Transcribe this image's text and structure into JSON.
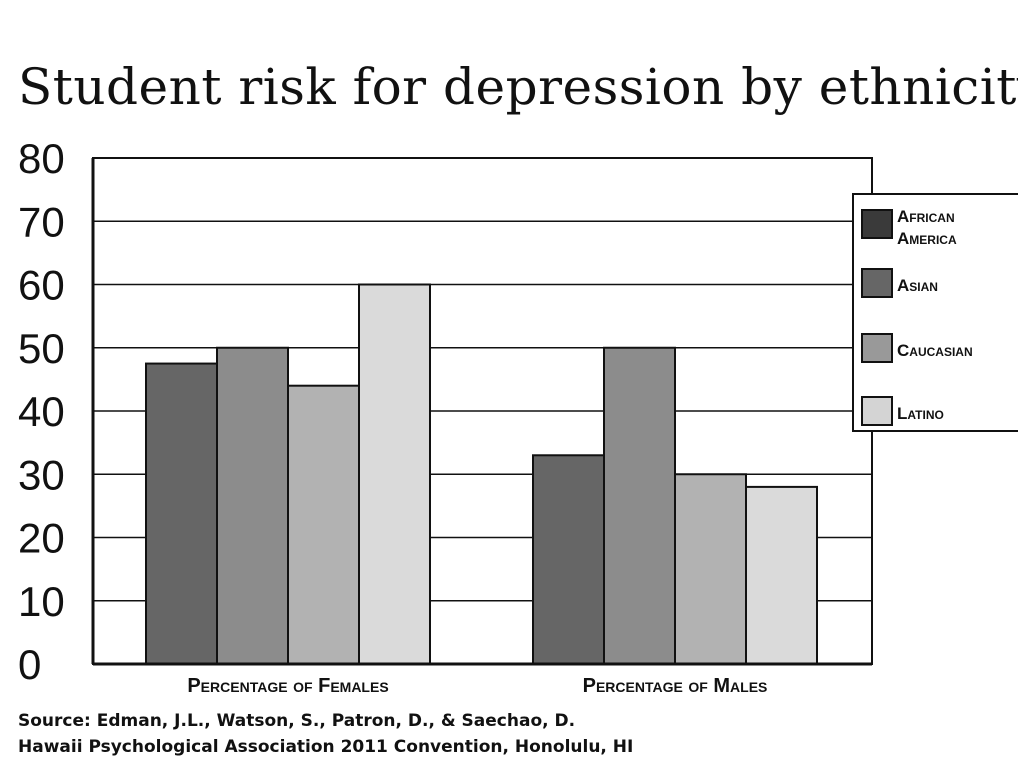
{
  "chart_data": {
    "type": "bar",
    "title": "Student risk for depression by ethnicity",
    "categories": [
      "Percentage of Females",
      "Percentage of Males"
    ],
    "series": [
      {
        "name": "African America",
        "values": [
          47.5,
          33
        ],
        "color": "#666666"
      },
      {
        "name": "Asian",
        "values": [
          50,
          50
        ],
        "color": "#8c8c8c"
      },
      {
        "name": "Caucasian",
        "values": [
          44,
          30
        ],
        "color": "#b2b2b2"
      },
      {
        "name": "Latino",
        "values": [
          60,
          28
        ],
        "color": "#dadada"
      }
    ],
    "legend_colors": [
      "#3a3a3a",
      "#666666",
      "#999999",
      "#d4d4d4"
    ],
    "yticks": [
      "0",
      "10",
      "20",
      "30",
      "40",
      "50",
      "60",
      "70",
      "80"
    ],
    "ylim": [
      0,
      80
    ],
    "xlabel": "",
    "ylabel": "",
    "grid": true,
    "legend_position": "right"
  },
  "source": {
    "line1": "Source: Edman, J.L., Watson, S., Patron, D., & Saechao, D.",
    "line2": "Hawaii Psychological Association 2011 Convention, Honolulu, HI"
  }
}
